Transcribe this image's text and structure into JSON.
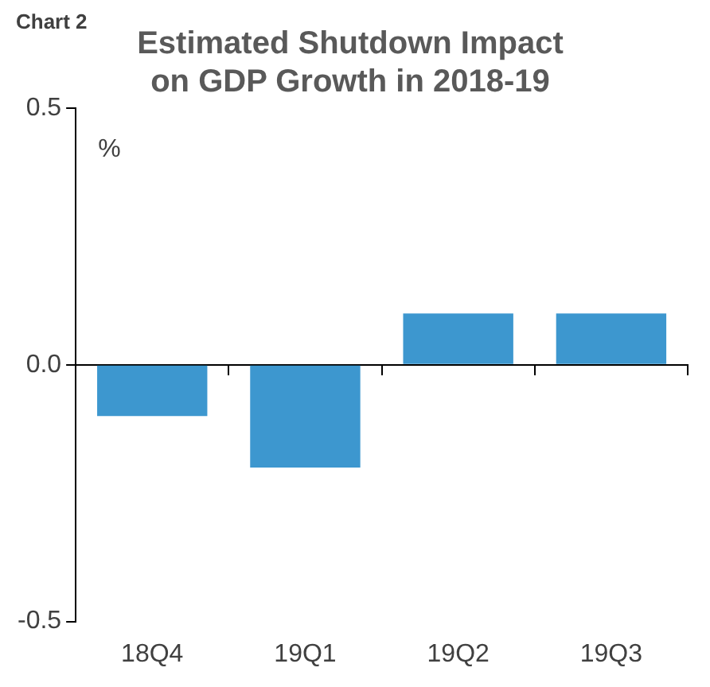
{
  "chart_data": {
    "type": "bar",
    "title": "Estimated Shutdown Impact on GDP Growth in 2018-19",
    "ylabel": "%",
    "annotations": [
      "Chart 2"
    ],
    "categories": [
      "18Q4",
      "19Q1",
      "19Q2",
      "19Q3"
    ],
    "series": [
      {
        "color": "#3d97cf",
        "values": [
          -0.1,
          -0.2,
          0.1,
          0.1
        ]
      }
    ],
    "ylim": [
      -0.5,
      0.5
    ],
    "yticks": [
      {
        "value": -0.5,
        "label": "-0.5"
      },
      {
        "value": 0,
        "label": "0.0"
      },
      {
        "value": 0.5,
        "label": "0.5"
      }
    ],
    "legend": false
  }
}
